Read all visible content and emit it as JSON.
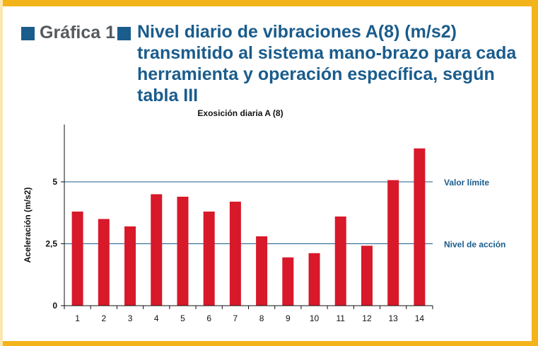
{
  "heading": {
    "label": "Gráfica 1",
    "title": "Nivel diario de vibraciones A(8) (m/s2) transmitido al sistema mano-brazo para cada herramienta y operación específica, según tabla III"
  },
  "colors": {
    "bar": "#d7192a",
    "reference_line": "#1a5c8c",
    "border": "#f3b41b",
    "heading_square": "#1a5c8c"
  },
  "chart_data": {
    "type": "bar",
    "title": "Exosición diaria A (8)",
    "xlabel": "",
    "ylabel": "Aceleración (m/s2)",
    "categories": [
      "1",
      "2",
      "3",
      "4",
      "5",
      "6",
      "7",
      "8",
      "9",
      "10",
      "11",
      "12",
      "13",
      "14"
    ],
    "values": [
      3.8,
      3.5,
      3.2,
      4.5,
      4.4,
      3.8,
      4.2,
      2.8,
      1.95,
      2.12,
      3.6,
      2.42,
      5.07,
      6.35
    ],
    "ylim": [
      0,
      7.2
    ],
    "yticks": [
      0,
      2.5,
      5
    ],
    "ytick_labels": [
      "0",
      "2,5",
      "5"
    ],
    "reference_lines": [
      {
        "value": 5,
        "label": "Valor límite"
      },
      {
        "value": 2.5,
        "label": "Nivel de acción"
      }
    ],
    "grid": false,
    "legend": "none"
  }
}
